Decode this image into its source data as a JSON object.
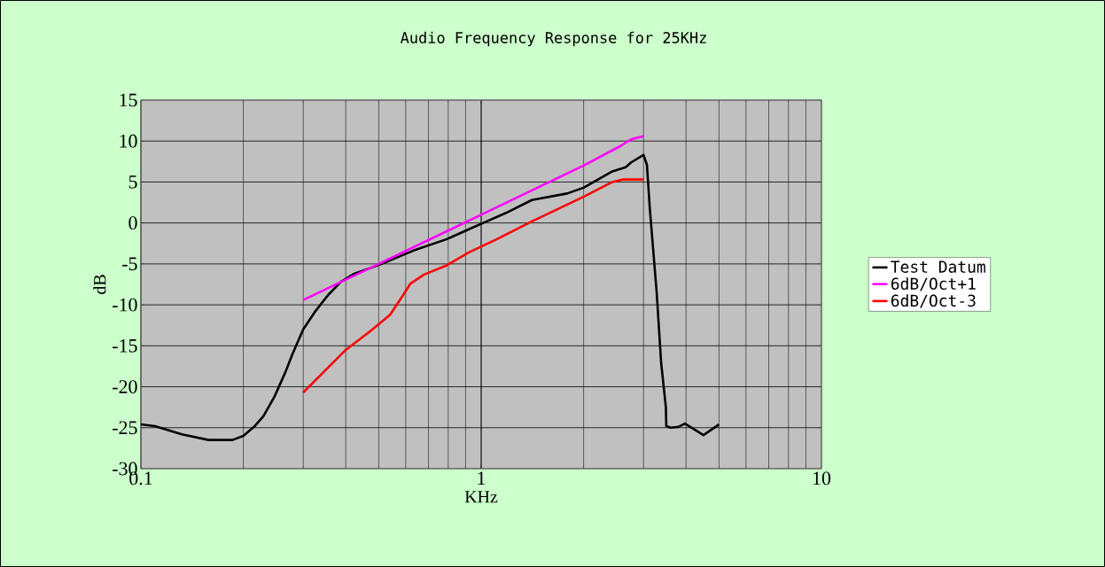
{
  "chart_data": {
    "type": "line",
    "title": "Audio Frequency Response for 25KHz",
    "xlabel": "KHz",
    "ylabel": "dB",
    "log": "x",
    "xlim": [
      0.1,
      10
    ],
    "xticks": [
      0.1,
      1,
      10
    ],
    "ylim": [
      -30,
      15
    ],
    "yticks": [
      -30,
      -25,
      -20,
      -15,
      -10,
      -5,
      0,
      5,
      10,
      15
    ],
    "grid": true,
    "legend": "right",
    "marker": "none",
    "line_style": "solid",
    "series": [
      {
        "name": "Test Datum",
        "color": "#000000",
        "x": [
          0.1,
          0.11,
          0.132,
          0.158,
          0.186,
          0.2,
          0.215,
          0.229,
          0.247,
          0.266,
          0.279,
          0.3,
          0.324,
          0.355,
          0.387,
          0.424,
          0.51,
          0.63,
          0.79,
          1.0,
          1.18,
          1.41,
          1.79,
          2.0,
          2.43,
          2.66,
          2.76,
          3.0,
          3.07,
          3.13,
          3.28,
          3.38,
          3.49,
          3.5,
          3.6,
          3.8,
          3.97,
          4.5,
          5.0
        ],
        "values": [
          -24.6,
          -24.8,
          -25.8,
          -26.5,
          -26.5,
          -26.0,
          -24.9,
          -23.6,
          -21.2,
          -18.2,
          -16.0,
          -13.0,
          -10.9,
          -8.8,
          -7.2,
          -6.2,
          -5.0,
          -3.4,
          -2.0,
          -0.1,
          1.2,
          2.8,
          3.6,
          4.3,
          6.3,
          6.8,
          7.4,
          8.3,
          7.1,
          1.8,
          -8.5,
          -17.1,
          -22.5,
          -24.8,
          -25.0,
          -24.9,
          -24.5,
          -25.9,
          -24.6
        ]
      },
      {
        "name": "6dB/Oct+1",
        "color": "#ff00ff",
        "x": [
          0.3,
          0.5,
          1.0,
          2.0,
          2.57,
          2.7,
          2.8,
          3.0
        ],
        "values": [
          -9.4,
          -5.0,
          1.0,
          7.0,
          9.4,
          10.0,
          10.3,
          10.6
        ]
      },
      {
        "name": "6dB/Oct-3",
        "color": "#ff0000",
        "x": [
          0.3,
          0.4,
          0.476,
          0.54,
          0.59,
          0.62,
          0.68,
          0.79,
          0.92,
          1.11,
          1.41,
          2.0,
          2.43,
          2.6,
          3.0
        ],
        "values": [
          -20.7,
          -15.5,
          -13.1,
          -11.2,
          -8.8,
          -7.4,
          -6.3,
          -5.2,
          -3.6,
          -2.0,
          0.2,
          3.2,
          5.0,
          5.3,
          5.3
        ]
      }
    ]
  }
}
